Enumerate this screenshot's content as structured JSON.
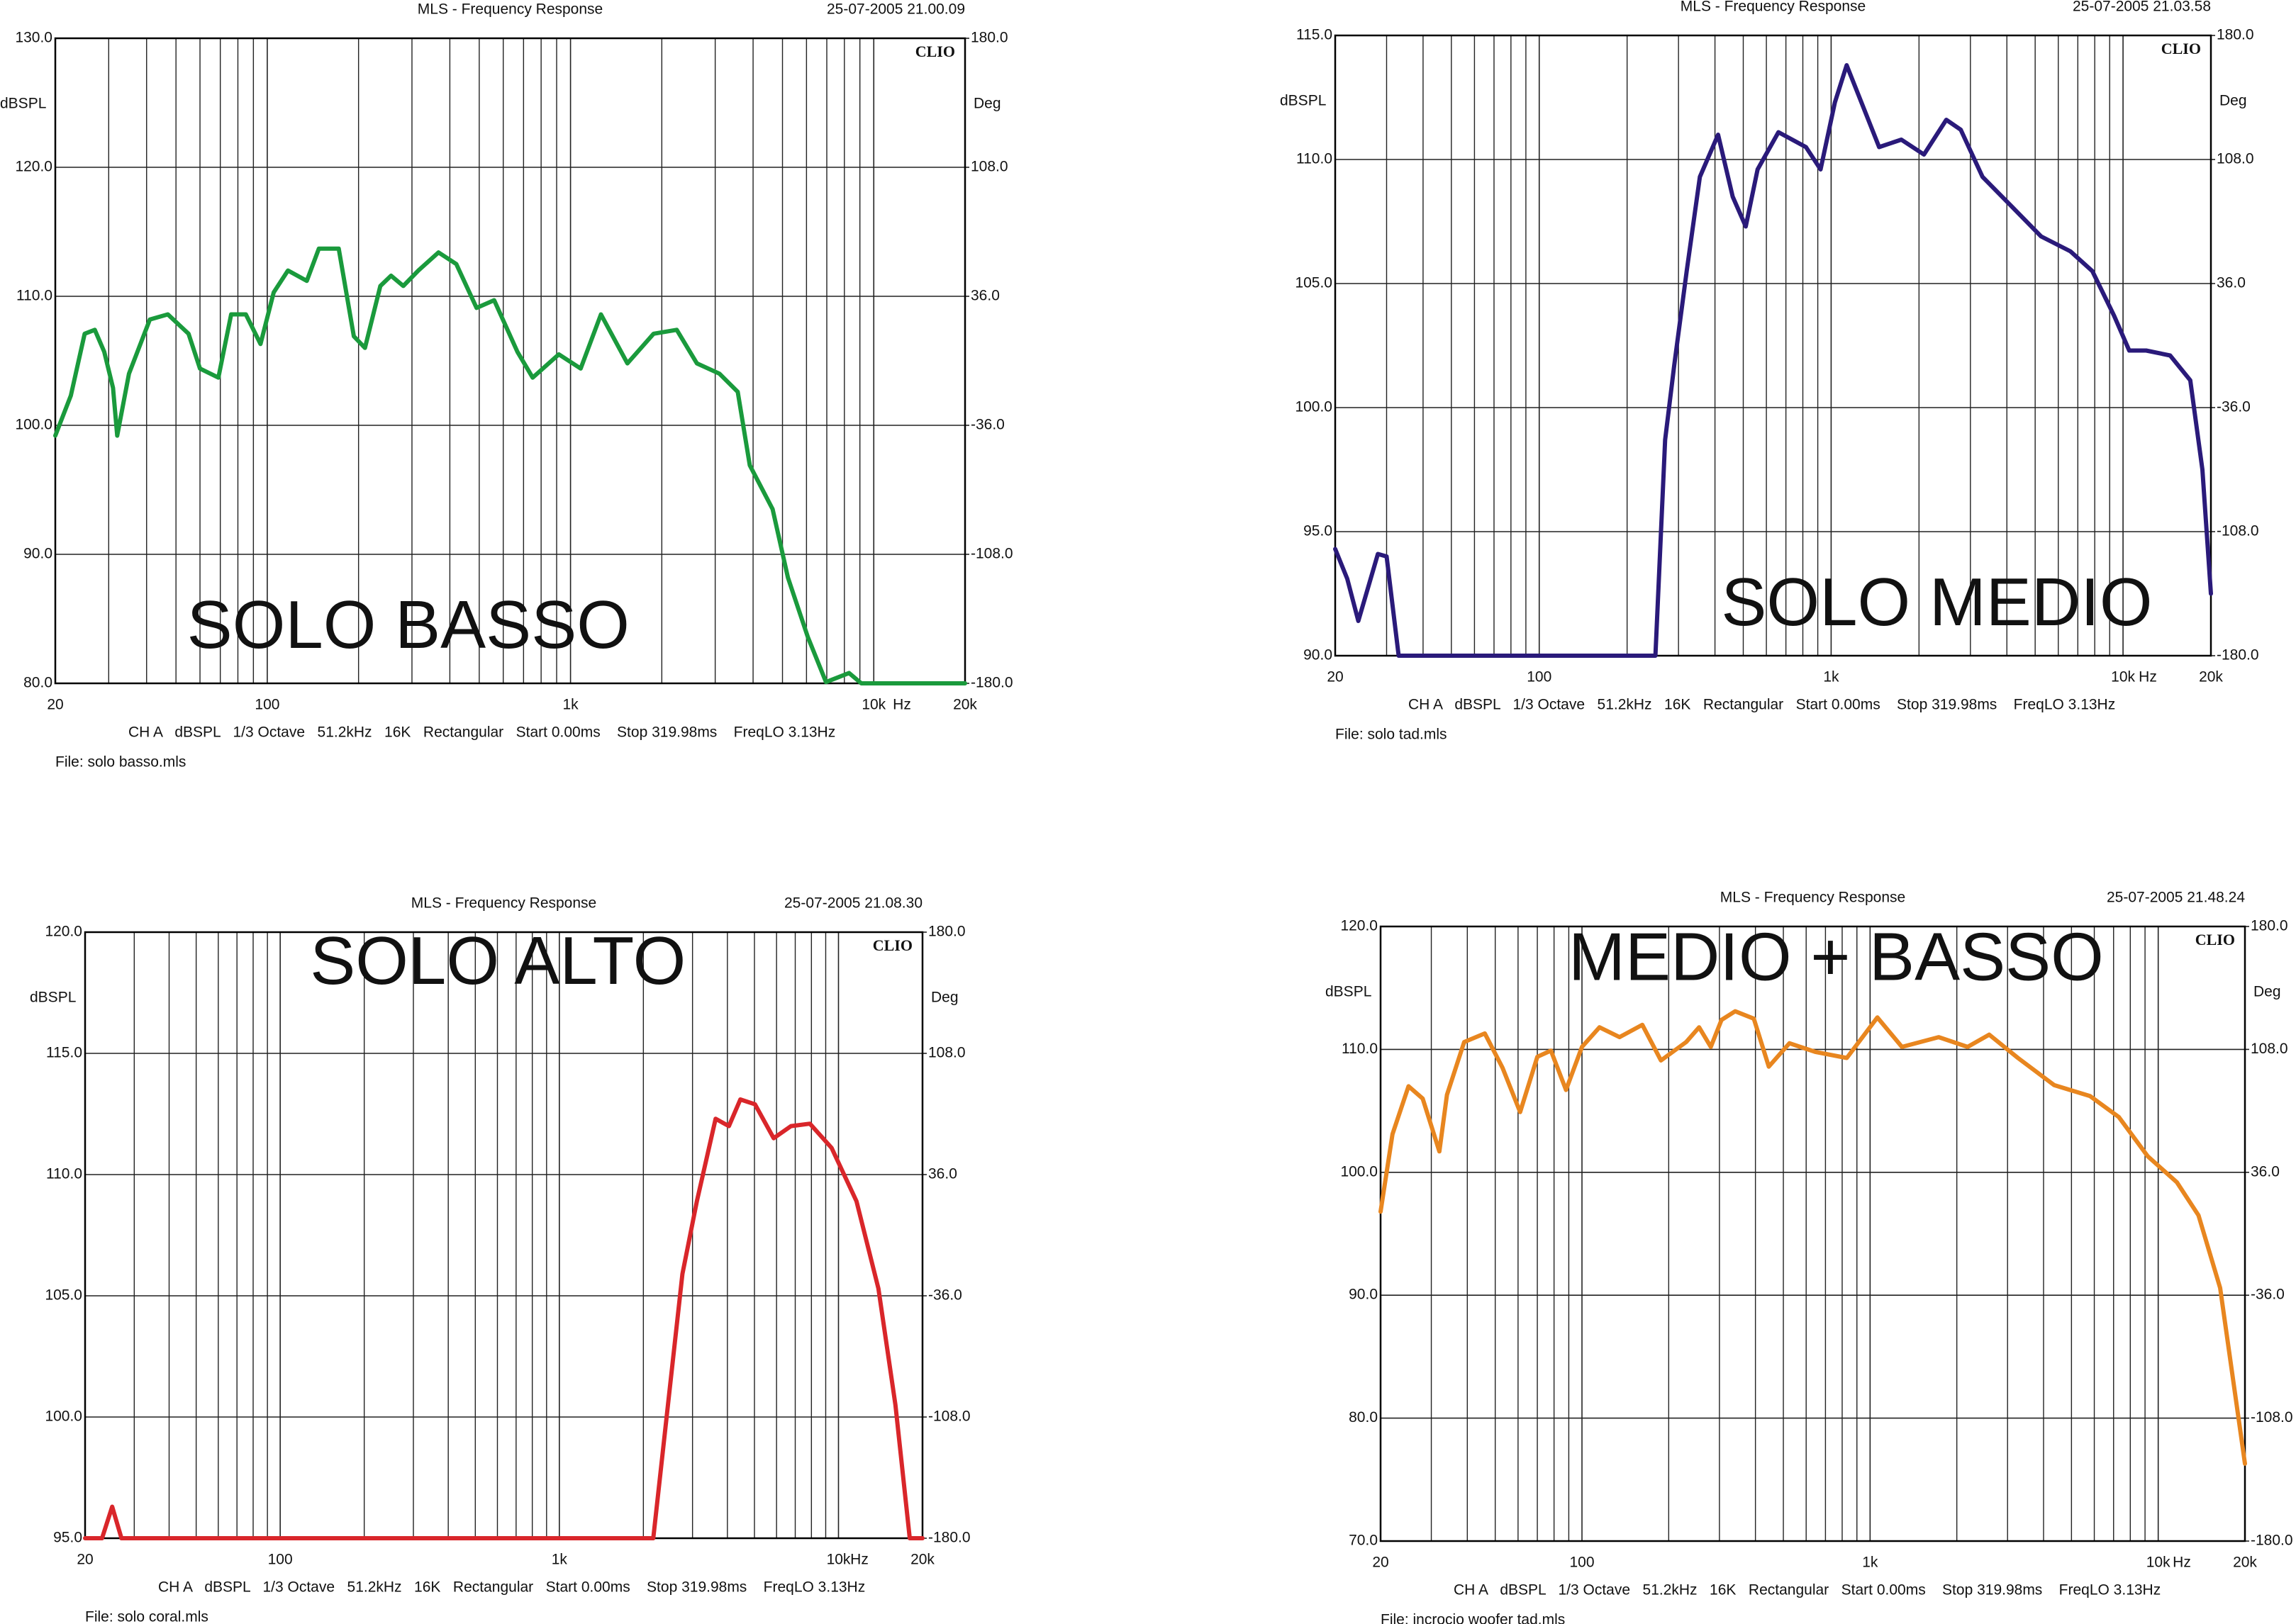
{
  "chart_data": [
    {
      "type": "line",
      "title": "MLS - Frequency Response",
      "timestamp": "25-07-2005 21.00.09",
      "brand": "CLIO",
      "ylabel": "dBSPL",
      "y2label": "Deg",
      "xunit": "Hz",
      "footer": "CH A   dBSPL   1/3 Octave   51.2kHz   16K   Rectangular   Start 0.00ms    Stop 319.98ms    FreqLO 3.13Hz",
      "file": "File: solo basso.mls",
      "annotation": "SOLO BASSO",
      "log_x": true,
      "xlim": [
        20,
        20000
      ],
      "xticks": [
        20,
        100,
        {
          "value": 1000,
          "label": "1k"
        },
        {
          "value": 10000,
          "label": "10k"
        },
        {
          "value": 20000,
          "label": "20k"
        }
      ],
      "xminor": [
        30,
        40,
        50,
        60,
        70,
        80,
        90,
        200,
        300,
        400,
        500,
        600,
        700,
        800,
        900,
        2000,
        3000,
        4000,
        5000,
        6000,
        7000,
        8000,
        9000
      ],
      "ylim": [
        80,
        130
      ],
      "yticks": [
        {
          "value": 80,
          "label": "80.0"
        },
        {
          "value": 90,
          "label": "90.0"
        },
        {
          "value": 100,
          "label": "100.0"
        },
        {
          "value": 110,
          "label": "110.0"
        },
        {
          "value": 120,
          "label": "120.0"
        },
        {
          "value": 130,
          "label": "130.0"
        }
      ],
      "y2lim": [
        -180,
        180
      ],
      "y2ticks": [
        {
          "value": -180,
          "label": "-180.0"
        },
        {
          "value": -108,
          "label": "-108.0"
        },
        {
          "value": -36,
          "label": "-36.0"
        },
        {
          "value": 36,
          "label": "36.0"
        },
        {
          "value": 108,
          "label": "108.0"
        },
        {
          "value": 180,
          "label": "180.0"
        }
      ],
      "x": [
        20,
        22.5,
        25,
        27,
        29,
        31,
        32,
        35,
        41,
        47,
        55,
        60,
        69,
        76,
        85,
        95,
        105,
        117,
        135,
        148,
        172,
        193,
        210,
        236,
        256,
        281,
        315,
        367,
        420,
        490,
        560,
        668,
        750,
        915,
        1080,
        1260,
        1540,
        1880,
        2240,
        2610,
        3100,
        3560,
        3900,
        4640,
        5210,
        6060,
        6960,
        8290,
        9100,
        20000
      ],
      "series": [
        {
          "color": "#1a9a3c",
          "values": [
            99.2,
            102.3,
            107.1,
            107.4,
            105.7,
            102.9,
            99.2,
            104,
            108.2,
            108.6,
            107.1,
            104.4,
            103.7,
            108.6,
            108.6,
            106.3,
            110.3,
            112,
            111.2,
            113.7,
            113.7,
            106.9,
            106,
            110.8,
            111.6,
            110.8,
            112,
            113.4,
            112.5,
            109.1,
            109.7,
            105.7,
            103.7,
            105.5,
            104.4,
            108.6,
            104.8,
            107.1,
            107.4,
            104.8,
            104,
            102.6,
            96.9,
            93.5,
            88.2,
            83.6,
            80.1,
            80.8,
            80,
            80
          ]
        }
      ]
    },
    {
      "type": "line",
      "title": "MLS - Frequency Response",
      "timestamp": "25-07-2005 21.03.58",
      "brand": "CLIO",
      "ylabel": "dBSPL",
      "y2label": "Deg",
      "xunit": "Hz",
      "footer": "CH A   dBSPL   1/3 Octave   51.2kHz   16K   Rectangular   Start 0.00ms    Stop 319.98ms    FreqLO 3.13Hz",
      "file": "File: solo tad.mls",
      "annotation": "SOLO MEDIO",
      "log_x": true,
      "xlim": [
        20,
        20000
      ],
      "xticks": [
        20,
        100,
        {
          "value": 1000,
          "label": "1k"
        },
        {
          "value": 10000,
          "label": "10k"
        },
        {
          "value": 20000,
          "label": "20k"
        }
      ],
      "xminor": [
        30,
        40,
        50,
        60,
        70,
        80,
        90,
        200,
        300,
        400,
        500,
        600,
        700,
        800,
        900,
        2000,
        3000,
        4000,
        5000,
        6000,
        7000,
        8000,
        9000
      ],
      "ylim": [
        90,
        115
      ],
      "yticks": [
        {
          "value": 90,
          "label": "90.0"
        },
        {
          "value": 95,
          "label": "95.0"
        },
        {
          "value": 100,
          "label": "100.0"
        },
        {
          "value": 105,
          "label": "105.0"
        },
        {
          "value": 110,
          "label": "110.0"
        },
        {
          "value": 115,
          "label": "115.0"
        }
      ],
      "y2lim": [
        -180,
        180
      ],
      "y2ticks": [
        {
          "value": -180,
          "label": "-180.0"
        },
        {
          "value": -108,
          "label": "-108.0"
        },
        {
          "value": -36,
          "label": "-36.0"
        },
        {
          "value": 36,
          "label": "36.0"
        },
        {
          "value": 108,
          "label": "108.0"
        },
        {
          "value": 180,
          "label": "180.0"
        }
      ],
      "x": [
        20,
        22,
        24,
        28,
        30,
        33,
        250,
        270,
        290,
        320,
        355,
        410,
        460,
        510,
        560,
        660,
        820,
        920,
        1030,
        1130,
        1300,
        1460,
        1740,
        2080,
        2480,
        2780,
        3300,
        4160,
        5240,
        6600,
        7850,
        9320,
        10500,
        12000,
        14500,
        17000,
        18700,
        20000
      ],
      "series": [
        {
          "color": "#2a1a7a",
          "values": [
            94.3,
            93.1,
            91.4,
            94.1,
            94,
            90,
            90,
            98.7,
            101.7,
            105.5,
            109.3,
            111,
            108.5,
            107.3,
            109.6,
            111.1,
            110.5,
            109.6,
            112.3,
            113.8,
            112,
            110.5,
            110.8,
            110.2,
            111.6,
            111.2,
            109.3,
            108.1,
            106.9,
            106.3,
            105.5,
            103.7,
            102.3,
            102.3,
            102.1,
            101.1,
            97.5,
            92.5
          ]
        }
      ]
    },
    {
      "type": "line",
      "title": "MLS - Frequency Response",
      "timestamp": "25-07-2005 21.08.30",
      "brand": "CLIO",
      "ylabel": "dBSPL",
      "y2label": "Deg",
      "xunit": "Hz",
      "footer": "CH A   dBSPL   1/3 Octave   51.2kHz   16K   Rectangular   Start 0.00ms    Stop 319.98ms    FreqLO 3.13Hz",
      "file": "File: solo coral.mls",
      "annotation": "SOLO ALTO",
      "log_x": true,
      "xlim": [
        20,
        20000
      ],
      "xticks": [
        20,
        100,
        {
          "value": 1000,
          "label": "1k"
        },
        {
          "value": 10000,
          "label": "10k"
        },
        {
          "value": 20000,
          "label": "20k"
        }
      ],
      "xminor": [
        30,
        40,
        50,
        60,
        70,
        80,
        90,
        200,
        300,
        400,
        500,
        600,
        700,
        800,
        900,
        2000,
        3000,
        4000,
        5000,
        6000,
        7000,
        8000,
        9000
      ],
      "ylim": [
        95,
        120
      ],
      "yticks": [
        {
          "value": 95,
          "label": "95.0"
        },
        {
          "value": 100,
          "label": "100.0"
        },
        {
          "value": 105,
          "label": "105.0"
        },
        {
          "value": 110,
          "label": "110.0"
        },
        {
          "value": 115,
          "label": "115.0"
        },
        {
          "value": 120,
          "label": "120.0"
        }
      ],
      "y2lim": [
        -180,
        180
      ],
      "y2ticks": [
        {
          "value": -180,
          "label": "-180.0"
        },
        {
          "value": -108,
          "label": "-108.0"
        },
        {
          "value": -36,
          "label": "-36.0"
        },
        {
          "value": 36,
          "label": "36.0"
        },
        {
          "value": 108,
          "label": "108.0"
        },
        {
          "value": 180,
          "label": "180.0"
        }
      ],
      "x": [
        20,
        23,
        25,
        27,
        2170,
        2450,
        2760,
        3110,
        3630,
        4050,
        4450,
        5020,
        5860,
        6760,
        7900,
        9450,
        11600,
        13900,
        16000,
        18000,
        20000
      ],
      "series": [
        {
          "color": "#d9262a",
          "values": [
            95,
            95,
            96.3,
            95,
            95,
            100.5,
            105.9,
            108.9,
            112.3,
            112,
            113.1,
            112.9,
            111.5,
            112,
            112.1,
            111.1,
            108.9,
            105.3,
            100.5,
            95,
            95
          ]
        }
      ]
    },
    {
      "type": "line",
      "title": "MLS - Frequency Response",
      "timestamp": "25-07-2005 21.48.24",
      "brand": "CLIO",
      "ylabel": "dBSPL",
      "y2label": "Deg",
      "xunit": "Hz",
      "footer": "CH A   dBSPL   1/3 Octave   51.2kHz   16K   Rectangular   Start 0.00ms    Stop 319.98ms    FreqLO 3.13Hz",
      "file": "File: incrocio woofer tad.mls",
      "annotation": "MEDIO + BASSO",
      "log_x": true,
      "xlim": [
        20,
        20000
      ],
      "xticks": [
        20,
        100,
        {
          "value": 1000,
          "label": "1k"
        },
        {
          "value": 10000,
          "label": "10k"
        },
        {
          "value": 20000,
          "label": "20k"
        }
      ],
      "xminor": [
        30,
        40,
        50,
        60,
        70,
        80,
        90,
        200,
        300,
        400,
        500,
        600,
        700,
        800,
        900,
        2000,
        3000,
        4000,
        5000,
        6000,
        7000,
        8000,
        9000
      ],
      "ylim": [
        70,
        120
      ],
      "yticks": [
        {
          "value": 70,
          "label": "70.0"
        },
        {
          "value": 80,
          "label": "80.0"
        },
        {
          "value": 90,
          "label": "90.0"
        },
        {
          "value": 100,
          "label": "100.0"
        },
        {
          "value": 110,
          "label": "110.0"
        },
        {
          "value": 120,
          "label": "120.0"
        }
      ],
      "y2lim": [
        -180,
        180
      ],
      "y2ticks": [
        {
          "value": -180,
          "label": "-180.0"
        },
        {
          "value": -108,
          "label": "-108.0"
        },
        {
          "value": -36,
          "label": "-36.0"
        },
        {
          "value": 36,
          "label": "36.0"
        },
        {
          "value": 108,
          "label": "108.0"
        },
        {
          "value": 180,
          "label": "180.0"
        }
      ],
      "x": [
        20,
        22,
        25,
        28,
        32,
        34,
        39,
        46,
        53,
        61,
        70,
        78,
        88,
        100,
        115,
        135,
        162,
        188,
        230,
        255,
        280,
        305,
        340,
        395,
        445,
        525,
        645,
        830,
        1060,
        1290,
        1730,
        2180,
        2590,
        3260,
        4350,
        5800,
        7300,
        9200,
        11600,
        13800,
        16400,
        20000
      ],
      "series": [
        {
          "color": "#e8861f",
          "values": [
            96.8,
            103.1,
            107,
            106,
            101.7,
            106.3,
            110.6,
            111.3,
            108.5,
            104.9,
            109.4,
            109.9,
            106.7,
            110.2,
            111.8,
            111,
            112,
            109.1,
            110.6,
            111.8,
            110.2,
            112.4,
            113.1,
            112.5,
            108.6,
            110.5,
            109.8,
            109.3,
            112.6,
            110.2,
            111,
            110.2,
            111.2,
            109.3,
            107.1,
            106.2,
            104.5,
            101.3,
            99.2,
            96.5,
            90.6,
            76.3
          ]
        }
      ]
    }
  ]
}
